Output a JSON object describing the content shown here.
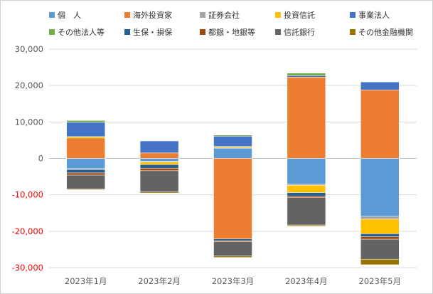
{
  "chart_data": {
    "type": "bar",
    "stacked": true,
    "title": "",
    "xlabel": "",
    "ylabel": "",
    "ylim": [
      -30000,
      30000
    ],
    "ytick_step": 10000,
    "ytick_labels": [
      "30,000",
      "20,000",
      "10,000",
      "0",
      "-10,000",
      "-20,000",
      "-30,000"
    ],
    "negative_tick_color": "#ff0000",
    "positive_tick_color": "#595959",
    "gridlines": true,
    "legend_position": "top",
    "categories": [
      "2023年1月",
      "2023年2月",
      "2023年3月",
      "2023年4月",
      "2023年5月"
    ],
    "series": [
      {
        "name": "個　人",
        "color": "#5B9BD5",
        "values": [
          -2800,
          -800,
          2800,
          -7100,
          -15900
        ]
      },
      {
        "name": "海外投資家",
        "color": "#ED7D31",
        "values": [
          5600,
          1500,
          -22100,
          22300,
          18800
        ]
      },
      {
        "name": "証券会社",
        "color": "#A5A5A5",
        "values": [
          -300,
          -200,
          200,
          -300,
          -800
        ]
      },
      {
        "name": "投資信託",
        "color": "#FFC000",
        "values": [
          400,
          -700,
          300,
          -2000,
          -4000
        ]
      },
      {
        "name": "事業法人",
        "color": "#4472C4",
        "values": [
          3900,
          3300,
          2800,
          400,
          2200
        ]
      },
      {
        "name": "その他法人等",
        "color": "#70AD47",
        "values": [
          500,
          100,
          300,
          700,
          100
        ]
      },
      {
        "name": "生保・損保",
        "color": "#255E91",
        "values": [
          -900,
          -1000,
          -500,
          -1000,
          -800
        ]
      },
      {
        "name": "都銀・地銀等",
        "color": "#9E480E",
        "values": [
          -600,
          -700,
          -300,
          -400,
          -700
        ]
      },
      {
        "name": "信託銀行",
        "color": "#636363",
        "values": [
          -3800,
          -5800,
          -3900,
          -7500,
          -5500
        ]
      },
      {
        "name": "その他金融機関",
        "color": "#997300",
        "values": [
          -200,
          -300,
          -400,
          -300,
          -1500
        ]
      }
    ]
  }
}
